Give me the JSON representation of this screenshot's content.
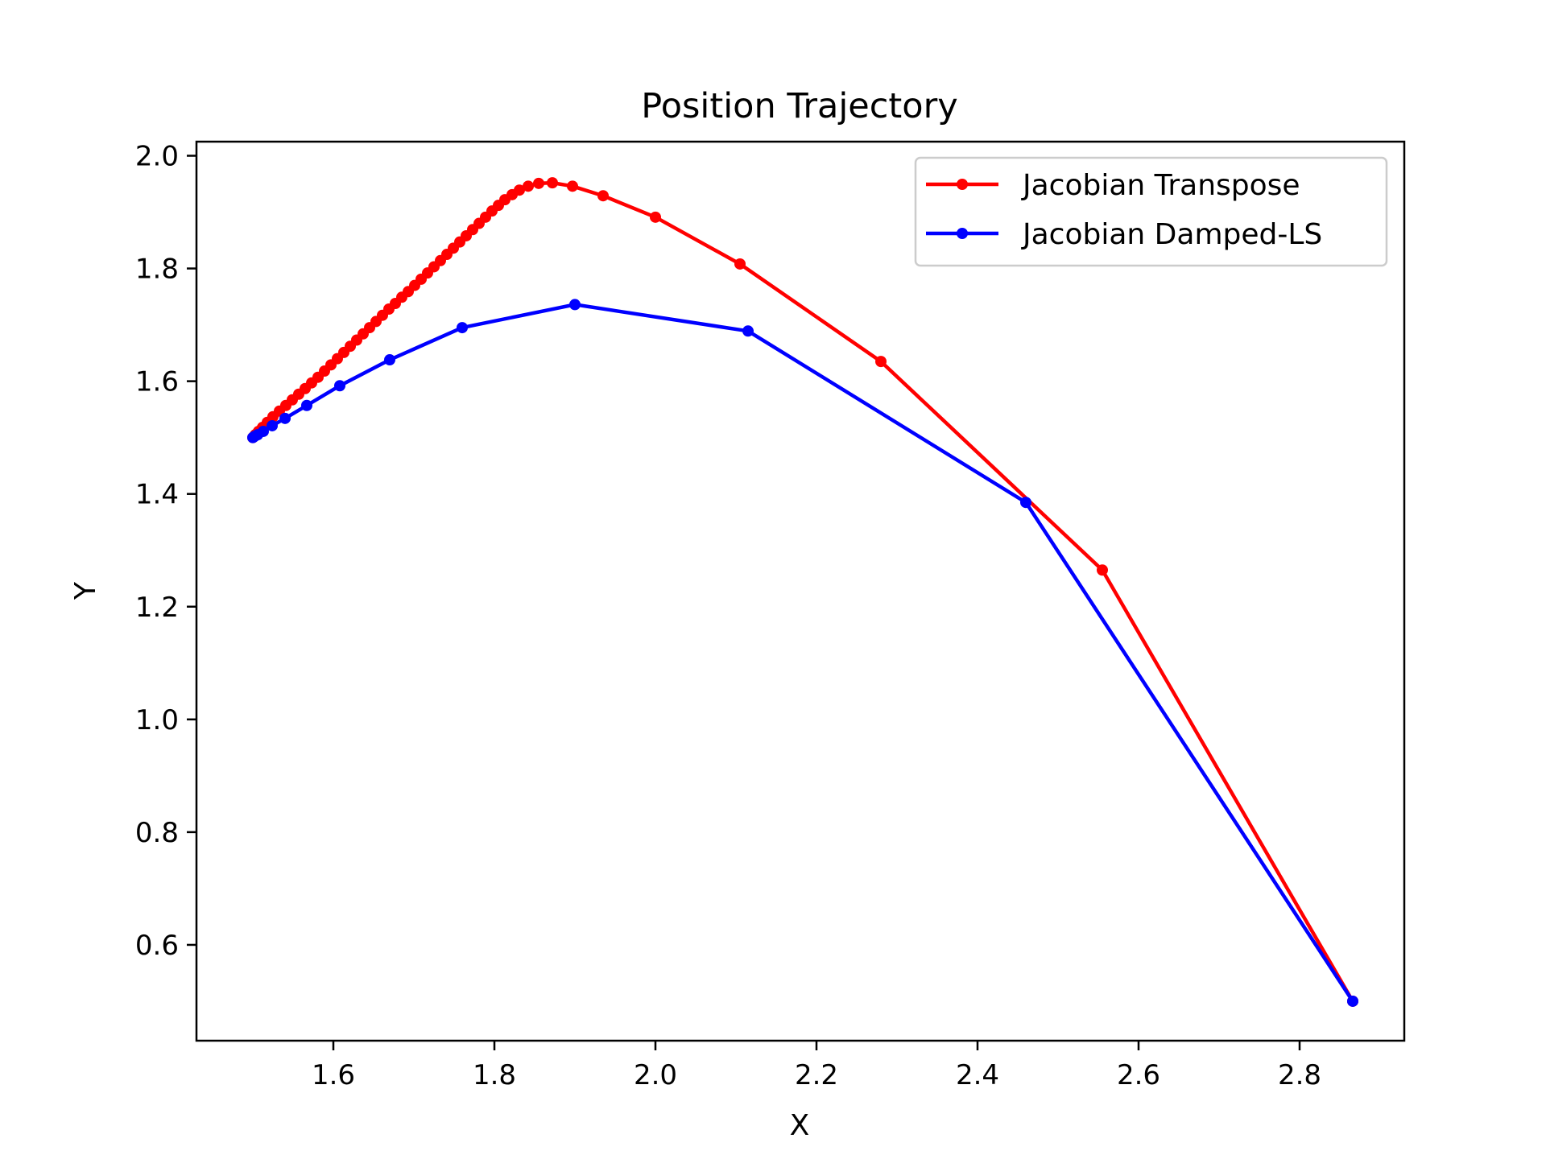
{
  "chart_data": {
    "type": "line",
    "title": "Position Trajectory",
    "xlabel": "X",
    "ylabel": "Y",
    "xlim": [
      1.43,
      2.93
    ],
    "ylim": [
      0.43,
      2.025
    ],
    "xticks": [
      1.6,
      1.8,
      2.0,
      2.2,
      2.4,
      2.6,
      2.8
    ],
    "xtick_labels": [
      "1.6",
      "1.8",
      "2.0",
      "2.2",
      "2.4",
      "2.6",
      "2.8"
    ],
    "yticks": [
      0.6,
      0.8,
      1.0,
      1.2,
      1.4,
      1.6,
      1.8,
      2.0
    ],
    "ytick_labels": [
      "0.6",
      "0.8",
      "1.0",
      "1.2",
      "1.4",
      "1.6",
      "1.8",
      "2.0"
    ],
    "grid": false,
    "legend": "top-right",
    "series": [
      {
        "name": "Jacobian Transpose",
        "color": "#ff0000",
        "marker": "circle",
        "points": [
          [
            2.866,
            0.5
          ],
          [
            2.555,
            1.265
          ],
          [
            2.28,
            1.635
          ],
          [
            2.105,
            1.808
          ],
          [
            2.0,
            1.891
          ],
          [
            1.935,
            1.929
          ],
          [
            1.897,
            1.946
          ],
          [
            1.872,
            1.952
          ],
          [
            1.855,
            1.951
          ],
          [
            1.842,
            1.946
          ],
          [
            1.831,
            1.939
          ],
          [
            1.822,
            1.931
          ],
          [
            1.813,
            1.922
          ],
          [
            1.805,
            1.912
          ],
          [
            1.797,
            1.902
          ],
          [
            1.789,
            1.891
          ],
          [
            1.781,
            1.88
          ],
          [
            1.773,
            1.869
          ],
          [
            1.765,
            1.858
          ],
          [
            1.757,
            1.847
          ],
          [
            1.749,
            1.836
          ],
          [
            1.741,
            1.825
          ],
          [
            1.733,
            1.814
          ],
          [
            1.725,
            1.803
          ],
          [
            1.717,
            1.792
          ],
          [
            1.709,
            1.781
          ],
          [
            1.701,
            1.77
          ],
          [
            1.693,
            1.759
          ],
          [
            1.685,
            1.749
          ],
          [
            1.677,
            1.738
          ],
          [
            1.669,
            1.728
          ],
          [
            1.661,
            1.717
          ],
          [
            1.653,
            1.706
          ],
          [
            1.645,
            1.695
          ],
          [
            1.637,
            1.684
          ],
          [
            1.629,
            1.673
          ],
          [
            1.621,
            1.662
          ],
          [
            1.613,
            1.651
          ],
          [
            1.605,
            1.64
          ],
          [
            1.597,
            1.629
          ],
          [
            1.589,
            1.618
          ],
          [
            1.581,
            1.607
          ],
          [
            1.573,
            1.597
          ],
          [
            1.565,
            1.587
          ],
          [
            1.557,
            1.577
          ],
          [
            1.549,
            1.567
          ],
          [
            1.541,
            1.557
          ],
          [
            1.533,
            1.547
          ],
          [
            1.525,
            1.537
          ],
          [
            1.518,
            1.527
          ],
          [
            1.512,
            1.518
          ],
          [
            1.507,
            1.511
          ],
          [
            1.503,
            1.505
          ],
          [
            1.5,
            1.5
          ]
        ]
      },
      {
        "name": "Jacobian Damped-LS",
        "color": "#0000ff",
        "marker": "circle",
        "points": [
          [
            2.866,
            0.5
          ],
          [
            2.46,
            1.385
          ],
          [
            2.115,
            1.689
          ],
          [
            1.9,
            1.736
          ],
          [
            1.76,
            1.695
          ],
          [
            1.67,
            1.638
          ],
          [
            1.608,
            1.592
          ],
          [
            1.567,
            1.557
          ],
          [
            1.54,
            1.534
          ],
          [
            1.524,
            1.521
          ],
          [
            1.513,
            1.511
          ],
          [
            1.506,
            1.505
          ],
          [
            1.502,
            1.502
          ],
          [
            1.5,
            1.5
          ]
        ]
      }
    ]
  }
}
